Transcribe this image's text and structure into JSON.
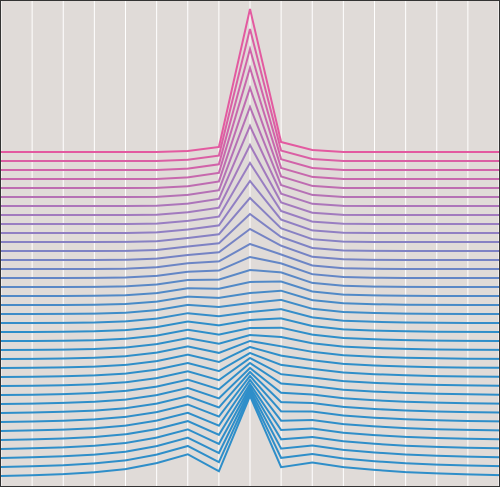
{
  "chart_data": {
    "type": "line",
    "title": "",
    "xlabel": "",
    "ylabel": "",
    "x": [
      0,
      1,
      2,
      3,
      4,
      5,
      6,
      7,
      8,
      9,
      10,
      11,
      12,
      13,
      14,
      15,
      16
    ],
    "xlim": [
      0,
      16
    ],
    "ylim": [
      0,
      487
    ],
    "grid": true,
    "grid_style": "vertical-only",
    "background_color": "#e0dbd8",
    "grid_color": "#ffffff",
    "frame_color": "#333333",
    "color_top": "#e35aa0",
    "color_mid": "#9a7ec2",
    "color_bottom": "#2e8ec9",
    "series": [
      {
        "values": [
          335.0,
          335.0,
          335.0,
          335.0,
          335.0,
          335.0,
          336.0,
          340.0,
          478.0,
          345.0,
          337.0,
          335.0,
          335.0,
          335.0,
          335.0,
          335.0,
          335.0
        ]
      },
      {
        "values": [
          326.0,
          326.0,
          326.0,
          326.0,
          326.0,
          326.0,
          327.2,
          331.4,
          458.0,
          336.4,
          328.0,
          326.0,
          326.0,
          326.0,
          326.0,
          326.0,
          326.0
        ]
      },
      {
        "values": [
          317.0,
          317.0,
          317.0,
          317.0,
          317.0,
          317.0,
          318.4,
          322.7,
          438.0,
          327.8,
          319.0,
          317.0,
          317.0,
          317.0,
          317.0,
          317.0,
          317.0
        ]
      },
      {
        "values": [
          308.0,
          308.0,
          308.0,
          308.0,
          308.0,
          308.0,
          309.6,
          314.1,
          419.0,
          319.1,
          310.1,
          308.0,
          308.0,
          308.0,
          308.0,
          308.0,
          308.0
        ]
      },
      {
        "values": [
          299.0,
          299.0,
          299.0,
          299.0,
          299.0,
          299.1,
          300.8,
          305.5,
          399.0,
          310.5,
          301.1,
          299.0,
          299.0,
          299.0,
          299.0,
          299.0,
          299.0
        ]
      },
      {
        "values": [
          290.0,
          290.0,
          290.0,
          290.0,
          290.0,
          290.1,
          292.1,
          296.8,
          380.0,
          301.9,
          292.1,
          290.0,
          290.0,
          290.0,
          290.0,
          290.0,
          290.0
        ]
      },
      {
        "values": [
          281.0,
          281.0,
          281.0,
          281.0,
          281.0,
          281.2,
          283.4,
          288.1,
          361.0,
          293.3,
          283.2,
          281.1,
          281.0,
          281.0,
          281.0,
          281.0,
          281.0
        ]
      },
      {
        "values": [
          272.0,
          272.0,
          272.0,
          272.0,
          272.0,
          272.3,
          274.7,
          279.3,
          342.0,
          284.6,
          274.3,
          272.1,
          272.0,
          272.0,
          272.0,
          272.0,
          272.0
        ]
      },
      {
        "values": [
          263.0,
          263.0,
          263.0,
          263.0,
          263.0,
          263.4,
          266.1,
          270.4,
          324.0,
          276.0,
          265.4,
          263.2,
          263.0,
          263.0,
          263.0,
          263.0,
          263.0
        ]
      },
      {
        "values": [
          254.0,
          254.0,
          254.0,
          254.0,
          254.0,
          254.6,
          257.5,
          261.6,
          306.0,
          267.4,
          256.6,
          254.3,
          254.0,
          254.0,
          254.0,
          254.0,
          254.0
        ]
      },
      {
        "values": [
          245.0,
          245.0,
          245.0,
          245.0,
          245.1,
          245.8,
          249.0,
          252.7,
          289.0,
          258.7,
          247.8,
          245.4,
          245.0,
          245.0,
          245.0,
          245.0,
          245.0
        ]
      },
      {
        "values": [
          236.0,
          236.0,
          236.0,
          236.0,
          236.1,
          237.0,
          240.5,
          243.7,
          273.0,
          250.0,
          239.0,
          236.5,
          236.1,
          236.0,
          236.0,
          236.0,
          236.0
        ]
      },
      {
        "values": [
          227.0,
          227.0,
          227.0,
          227.0,
          227.2,
          228.4,
          232.0,
          234.7,
          258.0,
          241.3,
          230.2,
          227.7,
          227.1,
          227.0,
          227.0,
          227.0,
          227.0
        ]
      },
      {
        "values": [
          218.0,
          218.0,
          218.0,
          218.0,
          218.3,
          219.7,
          223.7,
          225.6,
          243.0,
          232.5,
          221.5,
          218.8,
          218.2,
          218.0,
          218.0,
          218.0,
          218.0
        ]
      },
      {
        "values": [
          209.0,
          209.0,
          209.0,
          209.1,
          209.5,
          211.1,
          215.3,
          216.5,
          230.0,
          223.6,
          212.8,
          210.0,
          209.3,
          209.0,
          209.0,
          209.0,
          209.0
        ]
      },
      {
        "values": [
          200.0,
          200.0,
          200.0,
          200.1,
          200.6,
          202.5,
          207.0,
          207.4,
          217.0,
          214.6,
          204.1,
          201.2,
          200.4,
          200.1,
          200.0,
          200.0,
          200.0
        ]
      },
      {
        "values": [
          191.0,
          191.0,
          191.0,
          191.2,
          191.8,
          193.9,
          198.7,
          198.3,
          205.0,
          205.5,
          195.5,
          192.4,
          191.6,
          191.2,
          191.0,
          191.0,
          191.0
        ]
      },
      {
        "values": [
          182.0,
          182.0,
          182.0,
          182.3,
          183.0,
          185.4,
          190.4,
          189.1,
          194.0,
          196.3,
          186.9,
          183.7,
          182.8,
          182.3,
          182.1,
          182.0,
          182.0
        ]
      },
      {
        "values": [
          173.0,
          173.0,
          173.1,
          173.4,
          174.3,
          176.9,
          182.1,
          180.0,
          184.0,
          187.1,
          178.2,
          175.0,
          174.0,
          173.4,
          173.1,
          173.0,
          173.0
        ]
      },
      {
        "values": [
          164.0,
          164.0,
          164.1,
          164.5,
          165.6,
          168.4,
          173.8,
          170.8,
          175.0,
          177.9,
          169.6,
          166.3,
          165.2,
          164.5,
          164.2,
          164.0,
          164.0
        ]
      },
      {
        "values": [
          155.0,
          155.0,
          155.2,
          155.7,
          156.9,
          159.9,
          165.5,
          161.6,
          167.0,
          168.6,
          161.0,
          157.6,
          156.4,
          155.7,
          155.3,
          155.1,
          155.0
        ]
      },
      {
        "values": [
          146.0,
          146.0,
          146.3,
          146.8,
          148.2,
          151.4,
          157.2,
          152.4,
          159.0,
          159.3,
          152.4,
          149.0,
          147.7,
          146.9,
          146.4,
          146.1,
          146.0
        ]
      },
      {
        "values": [
          137.0,
          137.1,
          137.4,
          138.0,
          139.5,
          142.9,
          148.9,
          143.3,
          152.0,
          150.0,
          143.8,
          140.4,
          139.0,
          138.1,
          137.5,
          137.2,
          137.1
        ]
      },
      {
        "values": [
          128.0,
          128.1,
          128.5,
          129.2,
          130.8,
          134.4,
          140.6,
          134.1,
          146.0,
          140.7,
          135.2,
          131.7,
          130.2,
          129.3,
          128.7,
          128.3,
          128.1
        ]
      },
      {
        "values": [
          119.0,
          119.2,
          119.6,
          120.4,
          122.1,
          125.9,
          132.3,
          125.0,
          140.0,
          131.4,
          126.7,
          123.1,
          121.5,
          120.5,
          119.8,
          119.4,
          119.2
        ]
      },
      {
        "values": [
          110.0,
          110.2,
          110.7,
          111.6,
          113.4,
          117.4,
          124.0,
          115.9,
          134.0,
          122.1,
          118.1,
          114.5,
          112.8,
          111.7,
          110.9,
          110.5,
          110.2
        ]
      },
      {
        "values": [
          101.0,
          101.3,
          101.8,
          102.8,
          104.7,
          108.9,
          115.7,
          106.8,
          129.0,
          112.8,
          109.5,
          105.9,
          104.1,
          102.9,
          102.1,
          101.6,
          101.3
        ]
      },
      {
        "values": [
          92.0,
          92.3,
          92.9,
          94.0,
          96.1,
          100.4,
          107.4,
          97.7,
          124.0,
          103.5,
          101.0,
          97.3,
          95.4,
          94.1,
          93.2,
          92.7,
          92.3
        ]
      },
      {
        "values": [
          83.0,
          83.4,
          84.1,
          85.2,
          87.4,
          91.9,
          99.1,
          88.6,
          119.0,
          94.2,
          92.5,
          88.7,
          86.7,
          85.3,
          84.4,
          83.8,
          83.4
        ]
      },
      {
        "values": [
          74.0,
          74.5,
          75.2,
          76.4,
          78.8,
          83.4,
          90.8,
          79.5,
          115.0,
          84.9,
          84.0,
          80.1,
          78.0,
          76.5,
          75.5,
          74.9,
          74.5
        ]
      },
      {
        "values": [
          65.0,
          65.5,
          66.3,
          67.6,
          70.1,
          74.9,
          82.5,
          70.4,
          111.0,
          75.6,
          75.5,
          71.5,
          69.3,
          67.7,
          66.7,
          66.0,
          65.6
        ]
      },
      {
        "values": [
          56.0,
          56.6,
          57.4,
          58.8,
          61.4,
          66.4,
          74.2,
          61.3,
          107.0,
          66.3,
          67.0,
          62.9,
          60.6,
          58.9,
          57.8,
          57.1,
          56.6
        ]
      },
      {
        "values": [
          47.0,
          47.6,
          48.5,
          50.0,
          52.7,
          57.9,
          65.9,
          52.2,
          103.0,
          57.0,
          58.5,
          54.3,
          51.9,
          50.1,
          49.0,
          48.2,
          47.7
        ]
      },
      {
        "values": [
          38.0,
          38.7,
          39.6,
          41.2,
          44.0,
          49.4,
          57.6,
          43.1,
          100.0,
          47.7,
          50.0,
          45.7,
          43.2,
          41.3,
          40.1,
          39.3,
          38.8
        ]
      },
      {
        "values": [
          29.0,
          29.7,
          30.7,
          32.4,
          35.3,
          40.9,
          49.3,
          34.0,
          97.0,
          38.4,
          41.5,
          37.1,
          34.5,
          32.5,
          31.3,
          30.4,
          29.8
        ]
      },
      {
        "values": [
          20.0,
          20.8,
          21.8,
          23.6,
          26.6,
          32.4,
          41.0,
          24.9,
          94.0,
          29.1,
          33.0,
          28.5,
          25.8,
          23.7,
          22.4,
          21.5,
          20.9
        ]
      },
      {
        "values": [
          11.0,
          11.8,
          12.9,
          14.8,
          17.9,
          23.9,
          32.7,
          15.8,
          91.0,
          19.8,
          24.5,
          19.9,
          17.1,
          14.9,
          13.6,
          12.6,
          11.9
        ]
      }
    ]
  }
}
